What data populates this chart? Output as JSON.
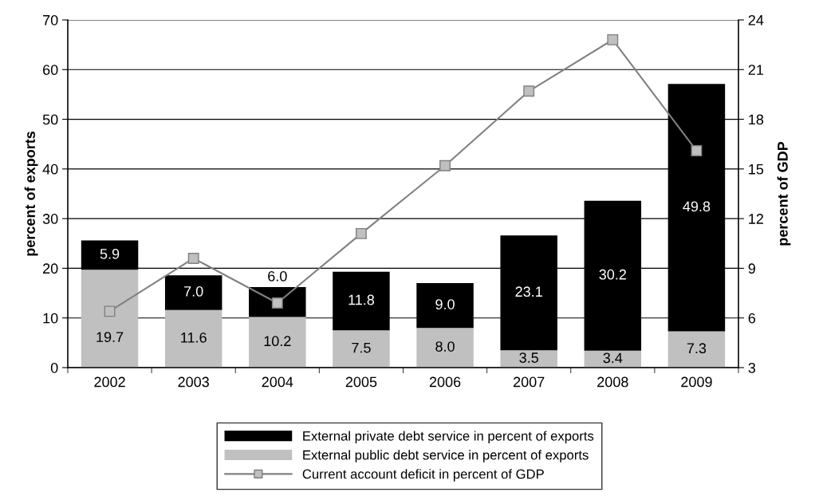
{
  "chart_data": {
    "type": "bar",
    "stacked": true,
    "categories": [
      "2002",
      "2003",
      "2004",
      "2005",
      "2006",
      "2007",
      "2008",
      "2009"
    ],
    "series": [
      {
        "name": "External public debt service in percent of exports",
        "color": "#c0c0c0",
        "values": [
          19.7,
          11.6,
          10.2,
          7.5,
          8.0,
          3.5,
          3.4,
          7.3
        ],
        "value_labels": [
          "19.7",
          "11.6",
          "10.2",
          "7.5",
          "8.0",
          "3.5",
          "3.4",
          "7.3"
        ]
      },
      {
        "name": "External private debt service in percent of exports",
        "color": "#000000",
        "values": [
          5.9,
          7.0,
          6.0,
          11.8,
          9.0,
          23.1,
          30.2,
          49.8
        ],
        "value_labels": [
          "5.9",
          "7.0",
          "6.0",
          "11.8",
          "9.0",
          "23.1",
          "30.2",
          "49.8"
        ]
      },
      {
        "name": "Current account deficit in percent of GDP",
        "type": "line",
        "axis": "y2",
        "color": "#808080",
        "marker": "square",
        "values": [
          6.4,
          9.6,
          6.9,
          11.1,
          15.2,
          19.7,
          22.8,
          16.1
        ]
      }
    ],
    "ylabel": "percent of exports",
    "y2label": "percent of GDP",
    "ylim": [
      0,
      70
    ],
    "yticks": [
      0,
      10,
      20,
      30,
      40,
      50,
      60,
      70
    ],
    "y2lim": [
      3,
      24
    ],
    "y2ticks": [
      3,
      6,
      9,
      12,
      15,
      18,
      21,
      24
    ],
    "grid": "y",
    "legend": "bottom"
  }
}
